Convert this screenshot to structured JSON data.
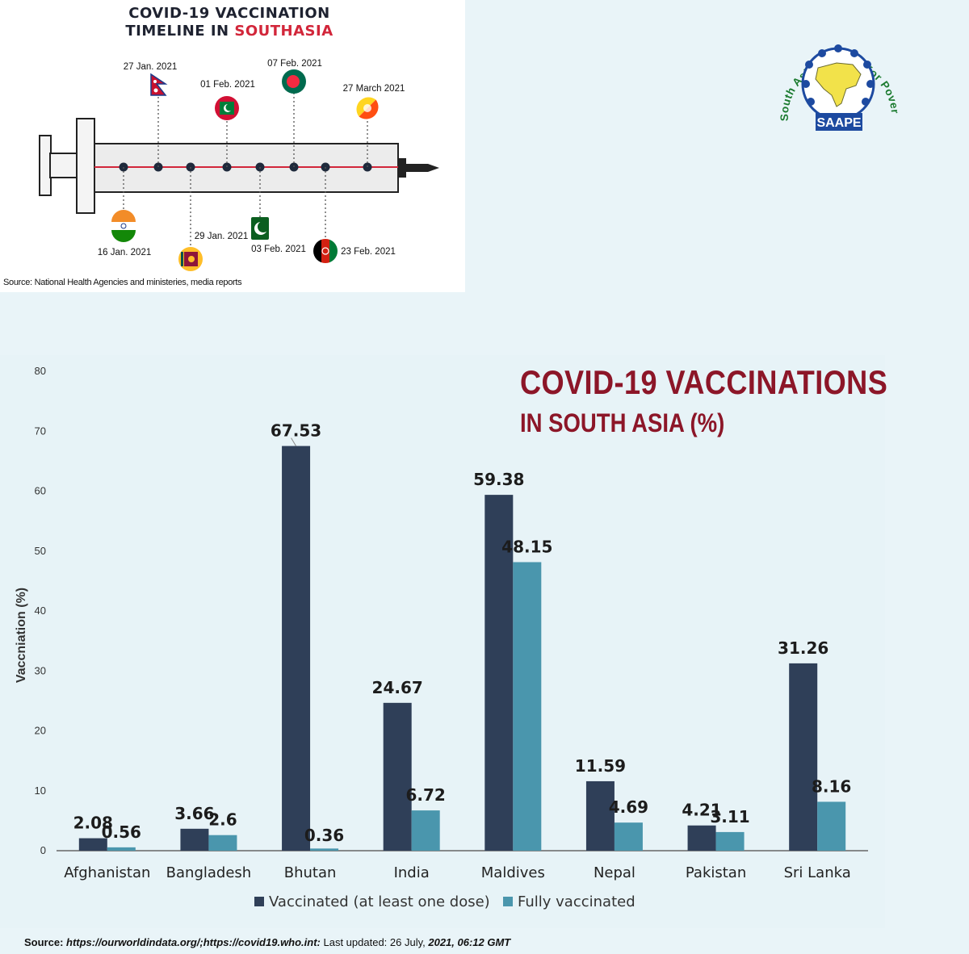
{
  "timeline": {
    "title_line1": "COVID-19 VACCINATION",
    "title_line2_plain": "TIMELINE IN ",
    "title_line2_highlight": "SOUTHASIA",
    "source": "Source: National Health Agencies and ministeries, media reports",
    "events": [
      {
        "date": "27 Jan. 2021",
        "flag": "nepal-flag-icon"
      },
      {
        "date": "01 Feb. 2021",
        "flag": "maldives-flag-icon"
      },
      {
        "date": "07 Feb. 2021",
        "flag": "bangladesh-flag-icon"
      },
      {
        "date": "27 March 2021",
        "flag": "bhutan-flag-icon"
      },
      {
        "date": "16 Jan. 2021",
        "flag": "india-flag-icon"
      },
      {
        "date": "29 Jan. 2021",
        "flag": "srilanka-flag-icon"
      },
      {
        "date": "03 Feb. 2021",
        "flag": "pakistan-flag-icon"
      },
      {
        "date": "23 Feb. 2021",
        "flag": "afghanistan-flag-icon"
      }
    ]
  },
  "logo": {
    "arc_text": "South Asia Alliance for Poverty Eradication",
    "label": "SAAPE"
  },
  "chart_title": {
    "line1": "COVID-19 VACCINATIONS",
    "line2": "IN SOUTH ASIA (%)"
  },
  "chart_data": {
    "type": "bar",
    "categories": [
      "Afghanistan",
      "Bangladesh",
      "Bhutan",
      "India",
      "Maldives",
      "Nepal",
      "Pakistan",
      "Sri Lanka"
    ],
    "series": [
      {
        "name": "Vaccinated (at least one dose)",
        "values": [
          2.08,
          3.66,
          67.53,
          24.67,
          59.38,
          11.59,
          4.21,
          31.26
        ],
        "labels": [
          "2.08",
          "3.66",
          "67.53",
          "24.67",
          "59.38",
          "11.59",
          "4.21",
          "31.26"
        ],
        "color": "#2f3f58"
      },
      {
        "name": "Fully vaccinated",
        "values": [
          0.56,
          2.6,
          0.36,
          6.72,
          48.15,
          4.69,
          3.11,
          8.16
        ],
        "labels": [
          "0.56",
          "2.6",
          "0.36",
          "6.72",
          "48.15",
          "4.69",
          "3.11",
          "8.16"
        ],
        "color": "#4a96ad"
      }
    ],
    "ylabel": "Vaccniation (%)",
    "ylim": [
      0,
      80
    ],
    "yticks": [
      "0",
      "10",
      "20",
      "30",
      "40",
      "50",
      "60",
      "70",
      "80"
    ],
    "grid": false,
    "legend": "bottom"
  },
  "footer": {
    "prefix": "Source: ",
    "links": "https://ourworldindata.org/;https://covid19.who.int:",
    "suffix": " Last updated: 26 July, ",
    "time": "2021, 06:12 GMT"
  },
  "colors": {
    "title_red": "#8c1628",
    "timeline_red": "#d2263a",
    "dark_bar": "#2f3f58",
    "light_bar": "#4a96ad"
  }
}
